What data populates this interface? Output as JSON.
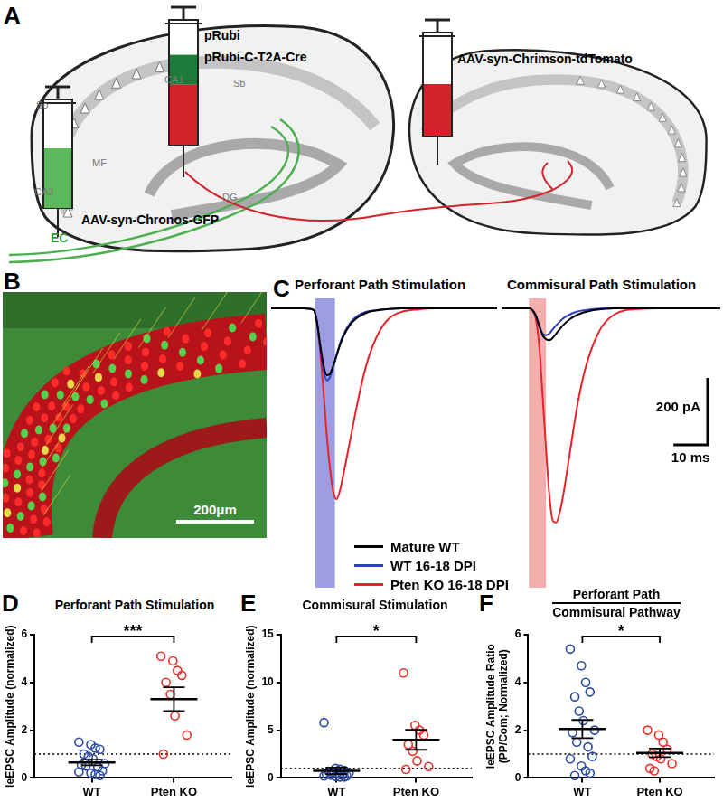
{
  "panel_labels": [
    "A",
    "B",
    "C",
    "D",
    "E",
    "F"
  ],
  "diagram": {
    "syringe_labels": {
      "left": "AAV-syn-Chronos-GFP",
      "middle": [
        "pRubi",
        "pRubi-C-T2A-Cre"
      ],
      "right": "AAV-syn-Chrimson-tdTomato"
    },
    "regions": [
      "CA1",
      "Sb",
      "So",
      "CA3",
      "MF",
      "DG"
    ],
    "pathway": "EC"
  },
  "micrograph": {
    "scale_bar": "200μm"
  },
  "chart_data": [
    {
      "type": "line",
      "title": "Perforant Path Stimulation",
      "tick_labels": false,
      "xlim": [
        0,
        69
      ],
      "ylim": [
        -835,
        30
      ],
      "stimulus": {
        "range": [
          13.5,
          19.5
        ],
        "color": "#8585dc"
      },
      "x": [
        0,
        10,
        13,
        14,
        15,
        16,
        17,
        18,
        19,
        20,
        21,
        22,
        24,
        26,
        28,
        30,
        33,
        36,
        40,
        45,
        50,
        55,
        60,
        65,
        69
      ],
      "series": [
        {
          "name": "Mature WT",
          "color": "#000000",
          "values": [
            0,
            0,
            -5,
            -40,
            -110,
            -170,
            -200,
            -195,
            -170,
            -140,
            -110,
            -85,
            -50,
            -30,
            -18,
            -10,
            -5,
            -2,
            0,
            0,
            0,
            0,
            0,
            0,
            0
          ]
        },
        {
          "name": "WT 16-18 DPI",
          "color": "#2b3fbf",
          "values": [
            0,
            0,
            -5,
            -45,
            -120,
            -185,
            -215,
            -205,
            -175,
            -140,
            -105,
            -80,
            -45,
            -25,
            -14,
            -8,
            -4,
            -2,
            0,
            0,
            0,
            0,
            0,
            0,
            0
          ]
        },
        {
          "name": "Pten KO 16-18 DPI",
          "color": "#e8232a",
          "values": [
            0,
            0,
            -5,
            -40,
            -130,
            -250,
            -380,
            -480,
            -550,
            -570,
            -545,
            -500,
            -400,
            -300,
            -210,
            -140,
            -70,
            -30,
            -10,
            -3,
            0,
            0,
            0,
            0,
            0
          ]
        }
      ]
    },
    {
      "type": "line",
      "title": "Commisural Path Stimulation",
      "tick_labels": false,
      "xlim": [
        0,
        64
      ],
      "ylim": [
        -835,
        30
      ],
      "stimulus": {
        "range": [
          8,
          13
        ],
        "color": "#f29a9a"
      },
      "scale_bar": {
        "x": 10,
        "x_label": "10 ms",
        "y": 200,
        "y_label": "200 pA"
      },
      "x": [
        0,
        5,
        8,
        9,
        10,
        11,
        12,
        13,
        14,
        15,
        16,
        17,
        18,
        20,
        22,
        24,
        26,
        28,
        30,
        33,
        36,
        40,
        45,
        50,
        55,
        60,
        64
      ],
      "series": [
        {
          "name": "Mature WT",
          "color": "#000000",
          "values": [
            0,
            0,
            0,
            -5,
            -20,
            -50,
            -80,
            -92,
            -95,
            -88,
            -75,
            -62,
            -50,
            -32,
            -20,
            -12,
            -7,
            -4,
            -2,
            0,
            0,
            0,
            0,
            0,
            0,
            0,
            0
          ]
        },
        {
          "name": "WT 16-18 DPI",
          "color": "#2b3fbf",
          "values": [
            0,
            0,
            0,
            -5,
            -25,
            -55,
            -75,
            -80,
            -75,
            -62,
            -50,
            -40,
            -30,
            -18,
            -10,
            -6,
            -3,
            -1,
            0,
            0,
            0,
            0,
            0,
            0,
            0,
            0,
            0
          ]
        },
        {
          "name": "Pten KO 16-18 DPI",
          "color": "#e8232a",
          "values": [
            0,
            0,
            0,
            -5,
            -30,
            -110,
            -260,
            -420,
            -560,
            -635,
            -640,
            -610,
            -560,
            -430,
            -300,
            -200,
            -130,
            -80,
            -45,
            -18,
            -6,
            -2,
            0,
            0,
            0,
            0,
            0
          ]
        }
      ]
    },
    {
      "type": "scatter",
      "title": "Perforant Path Stimulation",
      "y_label": "leEPSC Amplitude (normalized)",
      "categories": [
        "WT",
        "Pten KO"
      ],
      "colors": [
        "#2b4ba0",
        "#e8312a"
      ],
      "marker": "open_circle",
      "ylim": [
        0,
        6
      ],
      "yticks": [
        0,
        2,
        4,
        6
      ],
      "values": [
        [
          1.5,
          1.4,
          1.25,
          1.2,
          1.0,
          0.9,
          0.8,
          0.6,
          0.55,
          0.5,
          0.45,
          0.3,
          0.25,
          0.2,
          0.15,
          0.1
        ],
        [
          5.1,
          4.9,
          4.5,
          4.3,
          4.0,
          3.5,
          2.6,
          1.8,
          1.0
        ]
      ],
      "mean": [
        0.65,
        3.3
      ],
      "sem": [
        0.12,
        0.5
      ],
      "reference_line": 1,
      "significance": "***"
    },
    {
      "type": "scatter",
      "title": "Commisural Stimulation",
      "y_label": "leEPSC Amplitude (normalized)",
      "categories": [
        "WT",
        "Pten KO"
      ],
      "colors": [
        "#2b4ba0",
        "#e8312a"
      ],
      "marker": "open_circle",
      "ylim": [
        0,
        15
      ],
      "yticks": [
        0,
        5,
        10,
        15
      ],
      "values": [
        [
          5.8,
          1.0,
          0.9,
          0.8,
          0.7,
          0.6,
          0.5,
          0.5,
          0.4,
          0.3,
          0.3,
          0.2,
          0.2,
          0.15,
          0.1,
          0.1
        ],
        [
          11,
          5.5,
          5,
          4.5,
          3.5,
          2.8,
          1.8,
          1.2,
          0.9
        ]
      ],
      "mean": [
        0.75,
        4.0
      ],
      "sem": [
        0.35,
        1.05
      ],
      "reference_line": 1,
      "significance": "*"
    },
    {
      "type": "scatter",
      "title": [
        "Perforant Path",
        "Commisural Pathway"
      ],
      "y_label": [
        "leEPSC Amplitude Ratio",
        "(PP/Com; Normalized)"
      ],
      "categories": [
        "WT",
        "Pten KO"
      ],
      "colors": [
        "#2b4ba0",
        "#e8312a"
      ],
      "marker": "open_circle",
      "ylim": [
        0,
        6
      ],
      "yticks": [
        0,
        2,
        4,
        6
      ],
      "values": [
        [
          5.4,
          4.7,
          4.0,
          3.6,
          3.4,
          2.8,
          2.4,
          2.0,
          1.9,
          1.5,
          1.3,
          0.9,
          0.8,
          0.5,
          0.3,
          0.2,
          0.1
        ],
        [
          2.0,
          1.8,
          1.5,
          1.2,
          1.0,
          0.9,
          0.8,
          0.6,
          0.4,
          0.3
        ]
      ],
      "mean": [
        2.05,
        1.05
      ],
      "sem": [
        0.38,
        0.18
      ],
      "reference_line": 1,
      "significance": "*"
    }
  ]
}
